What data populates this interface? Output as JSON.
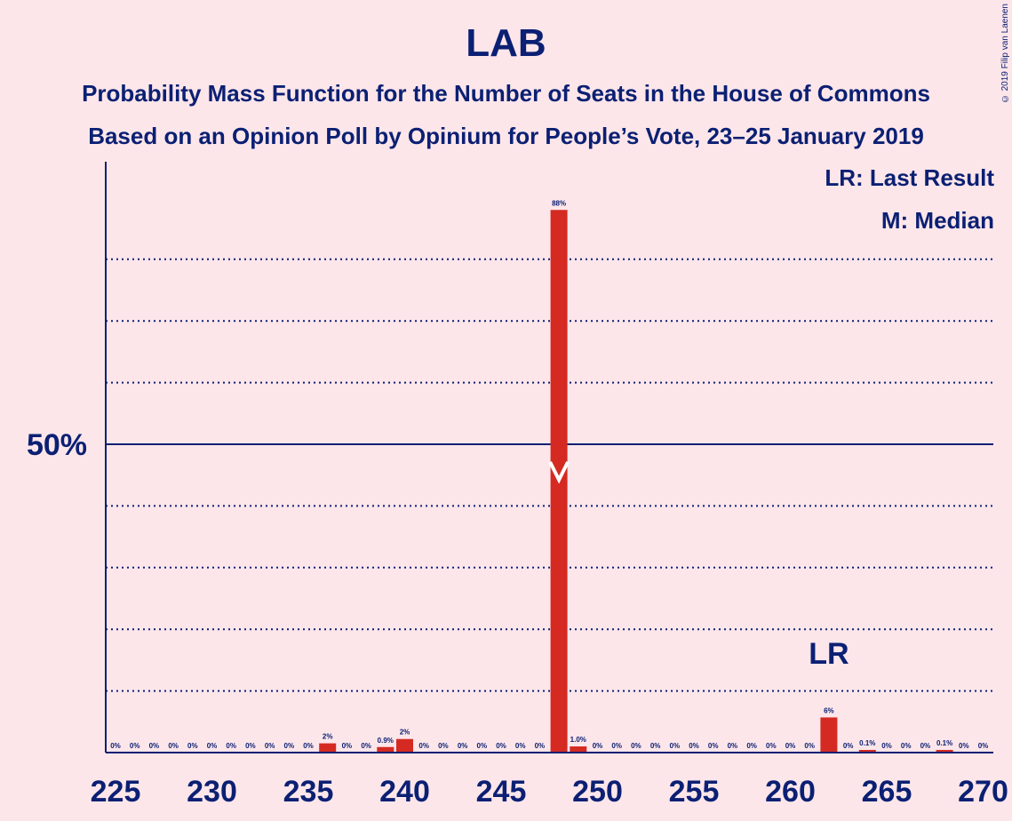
{
  "copyright": "© 2019 Filip van Laenen",
  "legend": {
    "last_result": "LR: Last Result",
    "median": "M: Median"
  },
  "colors": {
    "background": "#fde6ea",
    "bar": "#d42a22",
    "text": "#0b2073",
    "median_marker": "#ffffff"
  },
  "chart_data": {
    "type": "bar",
    "title": "LAB",
    "subtitle": [
      "Probability Mass Function for the Number of Seats in the House of Commons",
      "Based on an Opinion Poll by Opinium for People’s Vote, 23–25 January 2019"
    ],
    "xlabel": "",
    "ylabel": "",
    "xlim": [
      225,
      270
    ],
    "ylim": [
      0,
      100
    ],
    "x_ticks": [
      225,
      230,
      235,
      240,
      245,
      250,
      255,
      260,
      265,
      270
    ],
    "y_labeled_tick": {
      "value": 50,
      "label": "50%"
    },
    "y_gridlines": [
      10,
      20,
      30,
      40,
      60,
      70,
      80
    ],
    "grid": true,
    "legend_position": "top-right",
    "median": 248,
    "last_result": 262,
    "last_result_label": "LR",
    "bars": [
      {
        "x": 225,
        "value": 0,
        "label": "0%"
      },
      {
        "x": 226,
        "value": 0,
        "label": "0%"
      },
      {
        "x": 227,
        "value": 0,
        "label": "0%"
      },
      {
        "x": 228,
        "value": 0,
        "label": "0%"
      },
      {
        "x": 229,
        "value": 0,
        "label": "0%"
      },
      {
        "x": 230,
        "value": 0,
        "label": "0%"
      },
      {
        "x": 231,
        "value": 0,
        "label": "0%"
      },
      {
        "x": 232,
        "value": 0,
        "label": "0%"
      },
      {
        "x": 233,
        "value": 0,
        "label": "0%"
      },
      {
        "x": 234,
        "value": 0,
        "label": "0%"
      },
      {
        "x": 235,
        "value": 0,
        "label": "0%"
      },
      {
        "x": 236,
        "value": 1.5,
        "label": "2%"
      },
      {
        "x": 237,
        "value": 0,
        "label": "0%"
      },
      {
        "x": 238,
        "value": 0,
        "label": "0%"
      },
      {
        "x": 239,
        "value": 0.9,
        "label": "0.9%"
      },
      {
        "x": 240,
        "value": 2.2,
        "label": "2%"
      },
      {
        "x": 241,
        "value": 0,
        "label": "0%"
      },
      {
        "x": 242,
        "value": 0,
        "label": "0%"
      },
      {
        "x": 243,
        "value": 0,
        "label": "0%"
      },
      {
        "x": 244,
        "value": 0,
        "label": "0%"
      },
      {
        "x": 245,
        "value": 0,
        "label": "0%"
      },
      {
        "x": 246,
        "value": 0,
        "label": "0%"
      },
      {
        "x": 247,
        "value": 0,
        "label": "0%"
      },
      {
        "x": 248,
        "value": 88,
        "label": "88%"
      },
      {
        "x": 249,
        "value": 1.0,
        "label": "1.0%"
      },
      {
        "x": 250,
        "value": 0,
        "label": "0%"
      },
      {
        "x": 251,
        "value": 0,
        "label": "0%"
      },
      {
        "x": 252,
        "value": 0,
        "label": "0%"
      },
      {
        "x": 253,
        "value": 0,
        "label": "0%"
      },
      {
        "x": 254,
        "value": 0,
        "label": "0%"
      },
      {
        "x": 255,
        "value": 0,
        "label": "0%"
      },
      {
        "x": 256,
        "value": 0,
        "label": "0%"
      },
      {
        "x": 257,
        "value": 0,
        "label": "0%"
      },
      {
        "x": 258,
        "value": 0,
        "label": "0%"
      },
      {
        "x": 259,
        "value": 0,
        "label": "0%"
      },
      {
        "x": 260,
        "value": 0,
        "label": "0%"
      },
      {
        "x": 261,
        "value": 0,
        "label": "0%"
      },
      {
        "x": 262,
        "value": 5.7,
        "label": "6%"
      },
      {
        "x": 263,
        "value": 0,
        "label": "0%"
      },
      {
        "x": 264,
        "value": 0.1,
        "label": "0.1%"
      },
      {
        "x": 265,
        "value": 0,
        "label": "0%"
      },
      {
        "x": 266,
        "value": 0,
        "label": "0%"
      },
      {
        "x": 267,
        "value": 0,
        "label": "0%"
      },
      {
        "x": 268,
        "value": 0.1,
        "label": "0.1%"
      },
      {
        "x": 269,
        "value": 0,
        "label": "0%"
      },
      {
        "x": 270,
        "value": 0,
        "label": "0%"
      }
    ]
  }
}
